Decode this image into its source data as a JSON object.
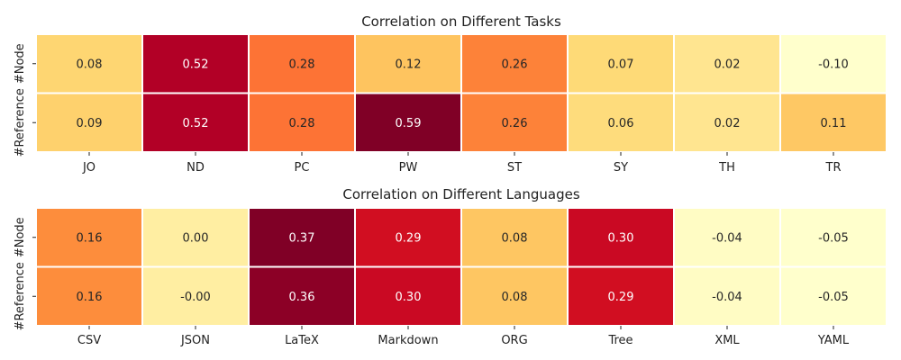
{
  "chart_data": [
    {
      "type": "heatmap",
      "title": "Correlation on Different Tasks",
      "rows": [
        "#Node",
        "#Reference"
      ],
      "columns": [
        "JO",
        "ND",
        "PC",
        "PW",
        "ST",
        "SY",
        "TH",
        "TR"
      ],
      "values": [
        [
          0.08,
          0.52,
          0.28,
          0.12,
          0.26,
          0.07,
          0.02,
          -0.1
        ],
        [
          0.09,
          0.52,
          0.28,
          0.59,
          0.26,
          0.06,
          0.02,
          0.11
        ]
      ],
      "labels": [
        [
          "0.08",
          "0.52",
          "0.28",
          "0.12",
          "0.26",
          "0.07",
          "0.02",
          "-0.10"
        ],
        [
          "0.09",
          "0.52",
          "0.28",
          "0.59",
          "0.26",
          "0.06",
          "0.02",
          "0.11"
        ]
      ],
      "vmin": -0.1,
      "vmax": 0.59,
      "colormap": "YlOrRd"
    },
    {
      "type": "heatmap",
      "title": "Correlation on Different Languages",
      "rows": [
        "#Node",
        "#Reference"
      ],
      "columns": [
        "CSV",
        "JSON",
        "LaTeX",
        "Markdown",
        "ORG",
        "Tree",
        "XML",
        "YAML"
      ],
      "values": [
        [
          0.16,
          0.0,
          0.37,
          0.29,
          0.08,
          0.3,
          -0.04,
          -0.05
        ],
        [
          0.16,
          -0.0,
          0.36,
          0.3,
          0.08,
          0.29,
          -0.04,
          -0.05
        ]
      ],
      "labels": [
        [
          "0.16",
          "0.00",
          "0.37",
          "0.29",
          "0.08",
          "0.30",
          "-0.04",
          "-0.05"
        ],
        [
          "0.16",
          "-0.00",
          "0.36",
          "0.30",
          "0.08",
          "0.29",
          "-0.04",
          "-0.05"
        ]
      ],
      "vmin": -0.05,
      "vmax": 0.37,
      "colormap": "YlOrRd"
    }
  ]
}
